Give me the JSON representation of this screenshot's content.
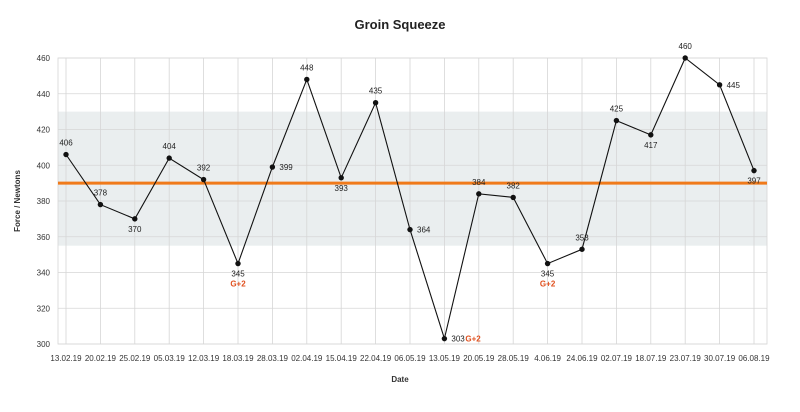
{
  "chart_data": {
    "type": "line",
    "title": "Groin Squeeze",
    "xlabel": "Date",
    "ylabel": "Force / Newtons",
    "ylim": [
      300,
      460
    ],
    "yticks": [
      300,
      320,
      340,
      360,
      380,
      400,
      420,
      440,
      460
    ],
    "grid": true,
    "categories": [
      "13.02.19",
      "20.02.19",
      "25.02.19",
      "05.03.19",
      "12.03.19",
      "18.03.19",
      "28.03.19",
      "02.04.19",
      "15.04.19",
      "22.04.19",
      "06.05.19",
      "13.05.19",
      "20.05.19",
      "28.05.19",
      "4.06.19",
      "24.06.19",
      "02.07.19",
      "18.07.19",
      "23.07.19",
      "30.07.19",
      "06.08.19"
    ],
    "series": [
      {
        "values": [
          406,
          378,
          370,
          404,
          392,
          345,
          399,
          448,
          393,
          435,
          364,
          303,
          384,
          382,
          345,
          353,
          425,
          417,
          460,
          445,
          397
        ]
      }
    ],
    "data_labels": [
      "406",
      "378",
      "370",
      "404",
      "392",
      "345",
      "399",
      "448",
      "393",
      "435",
      "364",
      "303",
      "384",
      "382",
      "345",
      "353",
      "425",
      "417",
      "460",
      "445",
      "397"
    ],
    "band": {
      "low": 355,
      "high": 430
    },
    "reference_line": {
      "value": 390
    },
    "annotations": [
      {
        "index": 5,
        "text": "G+2"
      },
      {
        "index": 11,
        "text": "G+2"
      },
      {
        "index": 14,
        "text": "G+2"
      }
    ],
    "colors": {
      "line": "#111111",
      "band": "#eaeeef",
      "reference": "#f07a1a",
      "annotation": "#e0501e",
      "grid": "#d6d6d6"
    }
  }
}
